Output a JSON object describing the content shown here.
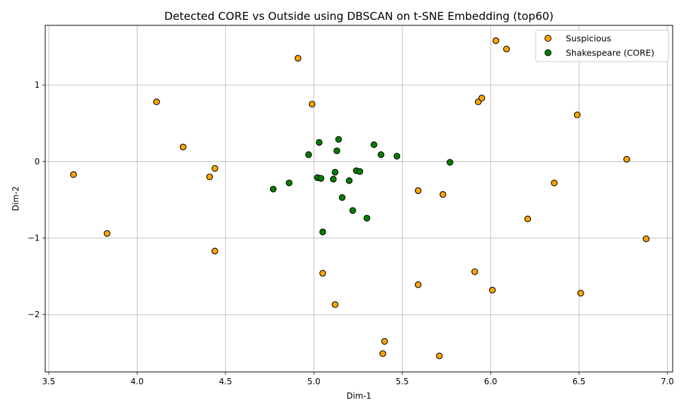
{
  "chart_data": {
    "type": "scatter",
    "title": "Detected CORE vs Outside using DBSCAN on t-SNE Embedding (top60)",
    "xlabel": "Dim-1",
    "ylabel": "Dim-2",
    "xlim": [
      3.48,
      7.03
    ],
    "ylim": [
      -2.75,
      1.78
    ],
    "xticks": [
      3.5,
      4.0,
      4.5,
      5.0,
      5.5,
      6.0,
      6.5,
      7.0
    ],
    "xtick_labels": [
      "3.5",
      "4.0",
      "4.5",
      "5.0",
      "5.5",
      "6.0",
      "6.5",
      "7.0"
    ],
    "yticks": [
      -2,
      -1,
      0,
      1
    ],
    "ytick_labels": [
      "−2",
      "−1",
      "0",
      "1"
    ],
    "grid": true,
    "legend_position": "top-right",
    "series": [
      {
        "name": "Suspicious",
        "color": "#ffa500",
        "edge_color": "#000000",
        "points": [
          [
            3.64,
            -0.17
          ],
          [
            3.83,
            -0.94
          ],
          [
            4.11,
            0.78
          ],
          [
            4.26,
            0.19
          ],
          [
            4.41,
            -0.2
          ],
          [
            4.44,
            -0.09
          ],
          [
            4.44,
            -1.17
          ],
          [
            4.91,
            1.35
          ],
          [
            4.99,
            0.75
          ],
          [
            5.05,
            -1.46
          ],
          [
            5.12,
            -1.87
          ],
          [
            5.39,
            -2.51
          ],
          [
            5.4,
            -2.35
          ],
          [
            5.59,
            -0.38
          ],
          [
            5.59,
            -1.61
          ],
          [
            5.71,
            -2.54
          ],
          [
            5.73,
            -0.43
          ],
          [
            5.91,
            -1.44
          ],
          [
            5.93,
            0.78
          ],
          [
            5.95,
            0.83
          ],
          [
            6.01,
            -1.68
          ],
          [
            6.03,
            1.58
          ],
          [
            6.09,
            1.47
          ],
          [
            6.21,
            -0.75
          ],
          [
            6.36,
            -0.28
          ],
          [
            6.49,
            0.61
          ],
          [
            6.51,
            -1.72
          ],
          [
            6.77,
            0.03
          ],
          [
            6.88,
            -1.01
          ]
        ]
      },
      {
        "name": "Shakespeare (CORE)",
        "color": "#008000",
        "edge_color": "#000000",
        "points": [
          [
            4.77,
            -0.36
          ],
          [
            4.86,
            -0.28
          ],
          [
            4.97,
            0.09
          ],
          [
            5.02,
            -0.21
          ],
          [
            5.03,
            0.25
          ],
          [
            5.04,
            -0.22
          ],
          [
            5.05,
            -0.92
          ],
          [
            5.11,
            -0.23
          ],
          [
            5.12,
            -0.14
          ],
          [
            5.13,
            0.14
          ],
          [
            5.14,
            0.29
          ],
          [
            5.16,
            -0.47
          ],
          [
            5.2,
            -0.25
          ],
          [
            5.22,
            -0.64
          ],
          [
            5.24,
            -0.12
          ],
          [
            5.26,
            -0.13
          ],
          [
            5.3,
            -0.74
          ],
          [
            5.34,
            0.22
          ],
          [
            5.38,
            0.09
          ],
          [
            5.47,
            0.07
          ],
          [
            5.77,
            -0.01
          ]
        ]
      }
    ]
  }
}
